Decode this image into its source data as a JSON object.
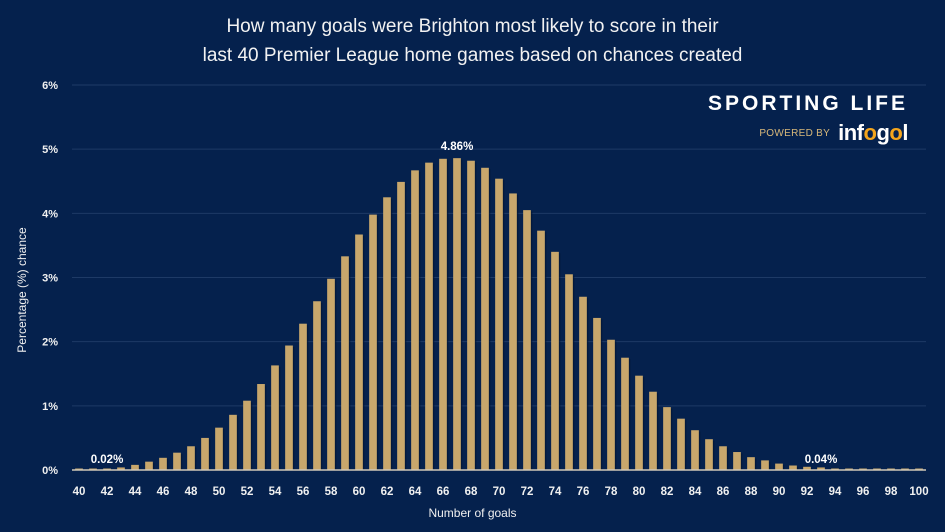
{
  "title": {
    "line1": "How many goals were Brighton most likely to score in their",
    "line2": "last 40 Premier League home games based on chances created"
  },
  "branding": {
    "main": "SPORTING LIFE",
    "powered_by": "POWERED BY",
    "partner_prefix": "inf",
    "partner_o": "o",
    "partner_mid": "g",
    "partner_o2": "o",
    "partner_suffix": "l"
  },
  "colors": {
    "background": "#05214d",
    "bar": "#c8a76c",
    "gridline": "#1e3a66",
    "axis": "#d0c8b8",
    "text": "#ffffff",
    "accent": "#f4a51c"
  },
  "chart_data": {
    "type": "bar",
    "title": "How many goals were Brighton most likely to score in their last 40 Premier League home games based on chances created",
    "xlabel": "Number of goals",
    "ylabel": "Percentage (%) chance",
    "ylim": [
      0,
      6
    ],
    "yticks": [
      "0%",
      "1%",
      "2%",
      "3%",
      "4%",
      "5%",
      "6%"
    ],
    "xticks": [
      "40",
      "42",
      "44",
      "46",
      "48",
      "50",
      "52",
      "54",
      "56",
      "58",
      "60",
      "62",
      "64",
      "66",
      "68",
      "70",
      "72",
      "74",
      "76",
      "78",
      "80",
      "82",
      "84",
      "86",
      "88",
      "90",
      "92",
      "94",
      "96",
      "98",
      "100"
    ],
    "grid": true,
    "categories": [
      40,
      41,
      42,
      43,
      44,
      45,
      46,
      47,
      48,
      49,
      50,
      51,
      52,
      53,
      54,
      55,
      56,
      57,
      58,
      59,
      60,
      61,
      62,
      63,
      64,
      65,
      66,
      67,
      68,
      69,
      70,
      71,
      72,
      73,
      74,
      75,
      76,
      77,
      78,
      79,
      80,
      81,
      82,
      83,
      84,
      85,
      86,
      87,
      88,
      89,
      90,
      91,
      92,
      93,
      94,
      95,
      96,
      97,
      98,
      99,
      100
    ],
    "values": [
      0.01,
      0.01,
      0.02,
      0.04,
      0.08,
      0.13,
      0.19,
      0.27,
      0.37,
      0.5,
      0.66,
      0.86,
      1.08,
      1.34,
      1.63,
      1.94,
      2.28,
      2.63,
      2.98,
      3.33,
      3.67,
      3.98,
      4.25,
      4.49,
      4.67,
      4.79,
      4.85,
      4.86,
      4.82,
      4.71,
      4.54,
      4.31,
      4.05,
      3.73,
      3.4,
      3.05,
      2.7,
      2.37,
      2.03,
      1.75,
      1.47,
      1.22,
      0.98,
      0.8,
      0.62,
      0.48,
      0.37,
      0.28,
      0.2,
      0.15,
      0.1,
      0.07,
      0.05,
      0.04,
      0.02,
      0.02,
      0.01,
      0.01,
      0.01,
      0.01,
      0.01
    ],
    "annotations": [
      {
        "text": "0.02%",
        "x": 42
      },
      {
        "text": "4.86%",
        "x": 67
      },
      {
        "text": "0.04%",
        "x": 93
      }
    ]
  }
}
